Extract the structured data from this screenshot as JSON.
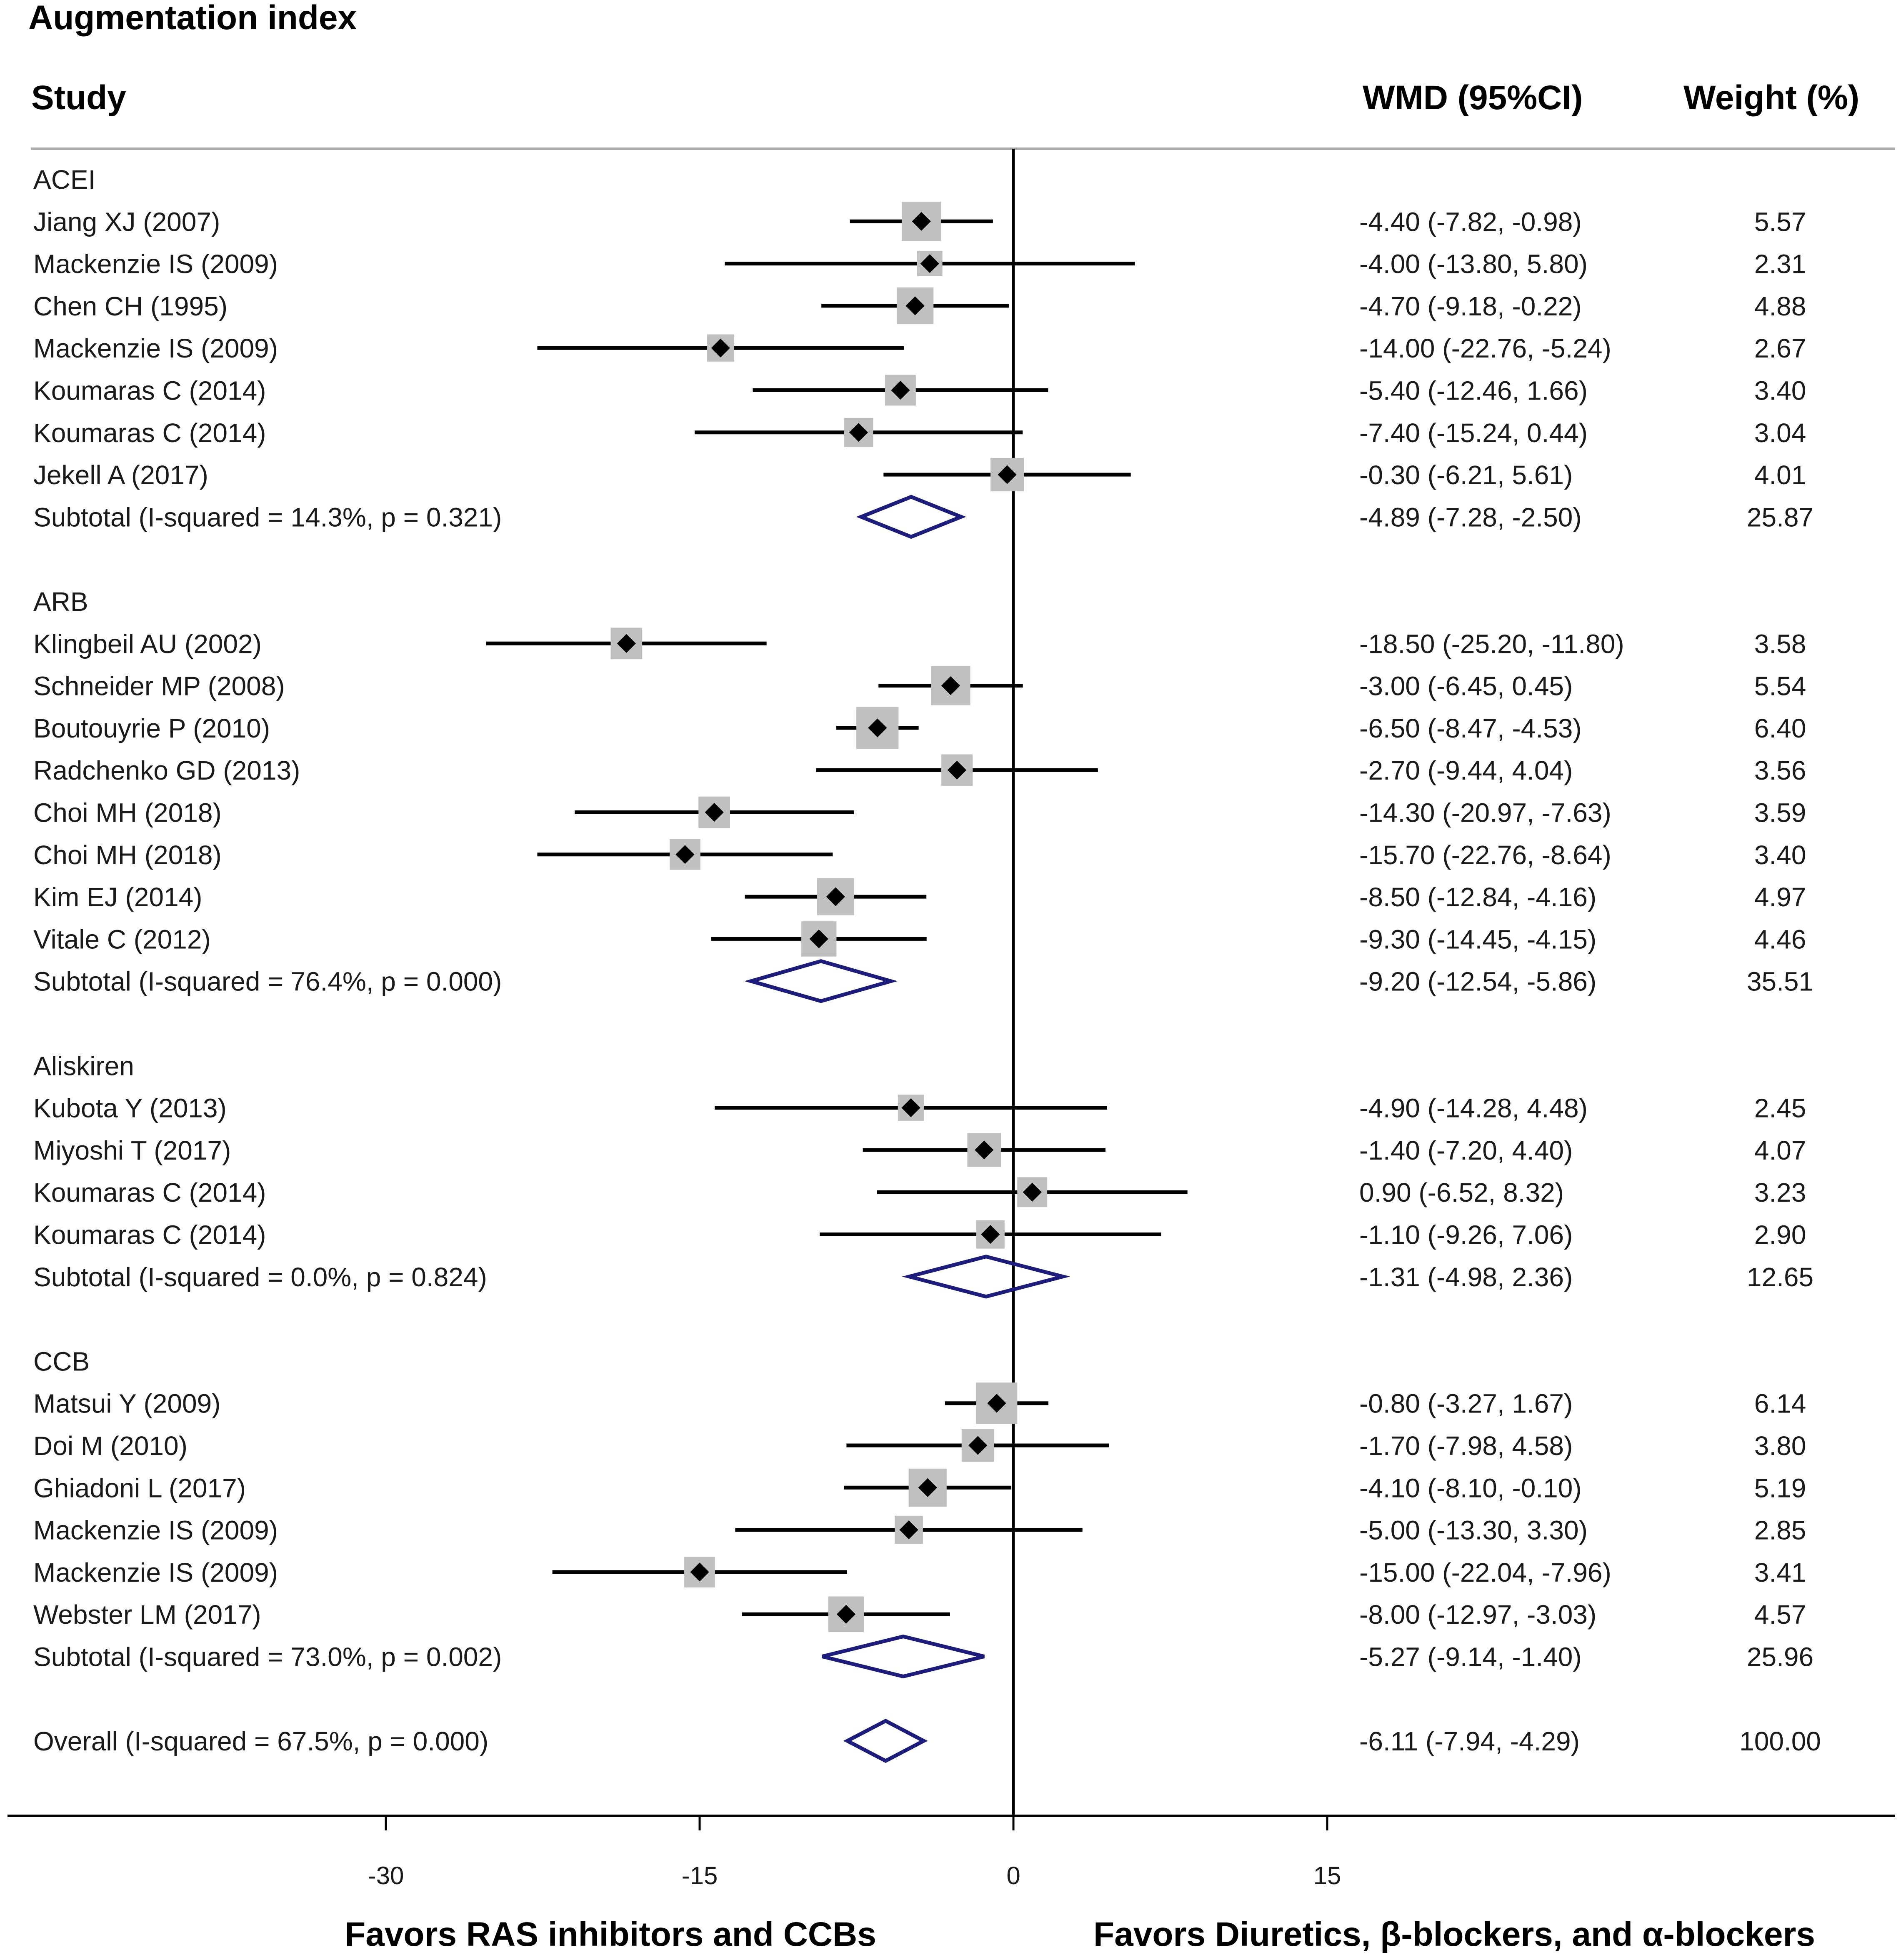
{
  "chart_data": {
    "type": "forest",
    "title": "Augmentation index",
    "columns": {
      "study": "Study",
      "effect": "WMD (95%CI)",
      "weight": "Weight (%)"
    },
    "xaxis": {
      "ticks": [
        -30,
        -15,
        0,
        15
      ],
      "tick_labels": [
        "-30",
        "-15",
        "0",
        "15"
      ],
      "null_value": 0,
      "left_label": "Favors RAS inhibitors and CCBs",
      "right_label": "Favors Diuretics, β-blockers, and α-blockers"
    },
    "colors": {
      "line": "#000000",
      "box": "#c0c0c0",
      "point": "#000000",
      "diamond": "#1c1c7c",
      "rule": "#a8a8a8"
    },
    "groups": [
      {
        "name": "ACEI",
        "studies": [
          {
            "label": "Jiang XJ (2007)",
            "est": -4.4,
            "lo": -7.82,
            "hi": -0.98,
            "ci_text": "-4.40 (-7.82, -0.98)",
            "weight": 5.57,
            "weight_text": "5.57"
          },
          {
            "label": "Mackenzie IS (2009)",
            "est": -4.0,
            "lo": -13.8,
            "hi": 5.8,
            "ci_text": "-4.00 (-13.80, 5.80)",
            "weight": 2.31,
            "weight_text": "2.31"
          },
          {
            "label": "Chen CH (1995)",
            "est": -4.7,
            "lo": -9.18,
            "hi": -0.22,
            "ci_text": "-4.70 (-9.18, -0.22)",
            "weight": 4.88,
            "weight_text": "4.88"
          },
          {
            "label": "Mackenzie IS (2009)",
            "est": -14.0,
            "lo": -22.76,
            "hi": -5.24,
            "ci_text": "-14.00 (-22.76, -5.24)",
            "weight": 2.67,
            "weight_text": "2.67"
          },
          {
            "label": "Koumaras C (2014)",
            "est": -5.4,
            "lo": -12.46,
            "hi": 1.66,
            "ci_text": "-5.40 (-12.46, 1.66)",
            "weight": 3.4,
            "weight_text": "3.40"
          },
          {
            "label": "Koumaras C (2014)",
            "est": -7.4,
            "lo": -15.24,
            "hi": 0.44,
            "ci_text": "-7.40 (-15.24, 0.44)",
            "weight": 3.04,
            "weight_text": "3.04"
          },
          {
            "label": "Jekell A (2017)",
            "est": -0.3,
            "lo": -6.21,
            "hi": 5.61,
            "ci_text": "-0.30 (-6.21, 5.61)",
            "weight": 4.01,
            "weight_text": "4.01"
          }
        ],
        "subtotal": {
          "label": "Subtotal  (I-squared = 14.3%, p = 0.321)",
          "est": -4.89,
          "lo": -7.28,
          "hi": -2.5,
          "ci_text": "-4.89 (-7.28, -2.50)",
          "weight": 25.87,
          "weight_text": "25.87"
        }
      },
      {
        "name": "ARB",
        "studies": [
          {
            "label": "Klingbeil AU (2002)",
            "est": -18.5,
            "lo": -25.2,
            "hi": -11.8,
            "ci_text": "-18.50 (-25.20, -11.80)",
            "weight": 3.58,
            "weight_text": "3.58"
          },
          {
            "label": "Schneider MP (2008)",
            "est": -3.0,
            "lo": -6.45,
            "hi": 0.45,
            "ci_text": "-3.00 (-6.45, 0.45)",
            "weight": 5.54,
            "weight_text": "5.54"
          },
          {
            "label": "Boutouyrie P (2010)",
            "est": -6.5,
            "lo": -8.47,
            "hi": -4.53,
            "ci_text": "-6.50 (-8.47, -4.53)",
            "weight": 6.4,
            "weight_text": "6.40"
          },
          {
            "label": "Radchenko GD (2013)",
            "est": -2.7,
            "lo": -9.44,
            "hi": 4.04,
            "ci_text": "-2.70 (-9.44, 4.04)",
            "weight": 3.56,
            "weight_text": "3.56"
          },
          {
            "label": "Choi MH (2018)",
            "est": -14.3,
            "lo": -20.97,
            "hi": -7.63,
            "ci_text": "-14.30 (-20.97, -7.63)",
            "weight": 3.59,
            "weight_text": "3.59"
          },
          {
            "label": "Choi MH (2018)",
            "est": -15.7,
            "lo": -22.76,
            "hi": -8.64,
            "ci_text": "-15.70 (-22.76, -8.64)",
            "weight": 3.4,
            "weight_text": "3.40"
          },
          {
            "label": "Kim EJ (2014)",
            "est": -8.5,
            "lo": -12.84,
            "hi": -4.16,
            "ci_text": "-8.50 (-12.84, -4.16)",
            "weight": 4.97,
            "weight_text": "4.97"
          },
          {
            "label": "Vitale C (2012)",
            "est": -9.3,
            "lo": -14.45,
            "hi": -4.15,
            "ci_text": "-9.30 (-14.45, -4.15)",
            "weight": 4.46,
            "weight_text": "4.46"
          }
        ],
        "subtotal": {
          "label": "Subtotal  (I-squared = 76.4%, p = 0.000)",
          "est": -9.2,
          "lo": -12.54,
          "hi": -5.86,
          "ci_text": "-9.20 (-12.54, -5.86)",
          "weight": 35.51,
          "weight_text": "35.51"
        }
      },
      {
        "name": "Aliskiren",
        "studies": [
          {
            "label": "Kubota Y (2013)",
            "est": -4.9,
            "lo": -14.28,
            "hi": 4.48,
            "ci_text": "-4.90 (-14.28, 4.48)",
            "weight": 2.45,
            "weight_text": "2.45"
          },
          {
            "label": "Miyoshi T (2017)",
            "est": -1.4,
            "lo": -7.2,
            "hi": 4.4,
            "ci_text": "-1.40 (-7.20, 4.40)",
            "weight": 4.07,
            "weight_text": "4.07"
          },
          {
            "label": "Koumaras C (2014)",
            "est": 0.9,
            "lo": -6.52,
            "hi": 8.32,
            "ci_text": "0.90 (-6.52, 8.32)",
            "weight": 3.23,
            "weight_text": "3.23"
          },
          {
            "label": "Koumaras C (2014)",
            "est": -1.1,
            "lo": -9.26,
            "hi": 7.06,
            "ci_text": "-1.10 (-9.26, 7.06)",
            "weight": 2.9,
            "weight_text": "2.90"
          }
        ],
        "subtotal": {
          "label": "Subtotal  (I-squared = 0.0%, p = 0.824)",
          "est": -1.31,
          "lo": -4.98,
          "hi": 2.36,
          "ci_text": "-1.31 (-4.98, 2.36)",
          "weight": 12.65,
          "weight_text": "12.65"
        }
      },
      {
        "name": "CCB",
        "studies": [
          {
            "label": "Matsui Y (2009)",
            "est": -0.8,
            "lo": -3.27,
            "hi": 1.67,
            "ci_text": "-0.80 (-3.27, 1.67)",
            "weight": 6.14,
            "weight_text": "6.14"
          },
          {
            "label": "Doi M (2010)",
            "est": -1.7,
            "lo": -7.98,
            "hi": 4.58,
            "ci_text": "-1.70 (-7.98, 4.58)",
            "weight": 3.8,
            "weight_text": "3.80"
          },
          {
            "label": "Ghiadoni L (2017)",
            "est": -4.1,
            "lo": -8.1,
            "hi": -0.1,
            "ci_text": "-4.10 (-8.10, -0.10)",
            "weight": 5.19,
            "weight_text": "5.19"
          },
          {
            "label": "Mackenzie IS (2009)",
            "est": -5.0,
            "lo": -13.3,
            "hi": 3.3,
            "ci_text": "-5.00 (-13.30, 3.30)",
            "weight": 2.85,
            "weight_text": "2.85"
          },
          {
            "label": "Mackenzie IS (2009)",
            "est": -15.0,
            "lo": -22.04,
            "hi": -7.96,
            "ci_text": "-15.00 (-22.04, -7.96)",
            "weight": 3.41,
            "weight_text": "3.41"
          },
          {
            "label": "Webster LM (2017)",
            "est": -8.0,
            "lo": -12.97,
            "hi": -3.03,
            "ci_text": "-8.00 (-12.97, -3.03)",
            "weight": 4.57,
            "weight_text": "4.57"
          }
        ],
        "subtotal": {
          "label": "Subtotal  (I-squared = 73.0%, p = 0.002)",
          "est": -5.27,
          "lo": -9.14,
          "hi": -1.4,
          "ci_text": "-5.27 (-9.14, -1.40)",
          "weight": 25.96,
          "weight_text": "25.96"
        }
      }
    ],
    "overall": {
      "label": "Overall  (I-squared = 67.5%, p = 0.000)",
      "est": -6.11,
      "lo": -7.94,
      "hi": -4.29,
      "ci_text": "-6.11 (-7.94, -4.29)",
      "weight": 100.0,
      "weight_text": "100.00"
    }
  }
}
